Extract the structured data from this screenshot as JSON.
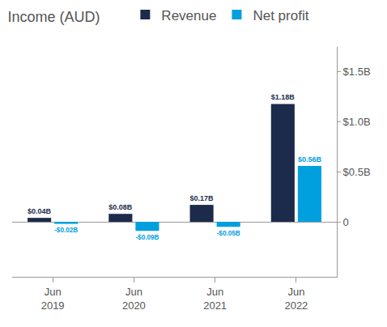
{
  "chart_data": {
    "type": "bar",
    "title": "Income (AUD)",
    "categories": [
      "Jun 2019",
      "Jun 2020",
      "Jun 2021",
      "Jun 2022"
    ],
    "series": [
      {
        "name": "Revenue",
        "color": "#1c2b4b",
        "values": [
          0.04,
          0.08,
          0.17,
          1.18
        ],
        "value_labels": [
          "$0.04B",
          "$0.08B",
          "$0.17B",
          "$1.18B"
        ]
      },
      {
        "name": "Net profit",
        "color": "#00a0df",
        "values": [
          -0.02,
          -0.09,
          -0.05,
          0.56
        ],
        "value_labels": [
          "-$0.02B",
          "-$0.09B",
          "-$0.05B",
          "$0.56B"
        ]
      }
    ],
    "ylim": [
      -0.55,
      1.75
    ],
    "yticks": [
      0,
      {
        "value": 0.5,
        "label": "$0.5B"
      },
      {
        "value": 1.0,
        "label": "$1.0B"
      },
      {
        "value": 1.5,
        "label": "$1.5B"
      }
    ],
    "grid": false,
    "data_labels": true,
    "legend": "top"
  }
}
